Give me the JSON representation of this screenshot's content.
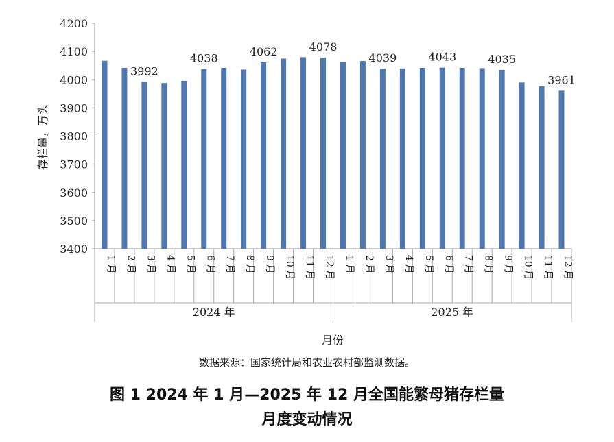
{
  "chart_data": {
    "type": "bar",
    "ylabel": "存栏量，万头",
    "xlabel": "月份",
    "ylim": [
      3400,
      4200
    ],
    "yticks": [
      "3400",
      "3500",
      "3600",
      "3700",
      "3800",
      "3900",
      "4000",
      "4100",
      "4200"
    ],
    "groups": [
      {
        "label": "2024 年",
        "categories": [
          "1 月",
          "2 月",
          "3 月",
          "4 月",
          "5 月",
          "6 月",
          "7 月",
          "8 月",
          "9 月",
          "10 月",
          "11 月",
          "12 月"
        ]
      },
      {
        "label": "2025 年",
        "categories": [
          "1 月",
          "2 月",
          "3 月",
          "4 月",
          "5 月",
          "6 月",
          "7 月",
          "8 月",
          "9 月",
          "10 月",
          "11 月",
          "12 月"
        ]
      }
    ],
    "series": [
      {
        "values": [
          4067,
          4042,
          3992,
          3988,
          3996,
          4038,
          4042,
          4036,
          4062,
          4075,
          4080,
          4078,
          4062,
          4066,
          4039,
          4040,
          4042,
          4043,
          4042,
          4041,
          4035,
          3990,
          3977,
          3961
        ]
      }
    ],
    "data_labels": [
      {
        "index": 2,
        "text": "3992"
      },
      {
        "index": 5,
        "text": "4038"
      },
      {
        "index": 8,
        "text": "4062"
      },
      {
        "index": 11,
        "text": "4078"
      },
      {
        "index": 14,
        "text": "4039"
      },
      {
        "index": 17,
        "text": "4043"
      },
      {
        "index": 20,
        "text": "4035"
      },
      {
        "index": 23,
        "text": "3961"
      }
    ],
    "bar_color": "#4f78b0",
    "grid": false
  },
  "source_note": "数据来源：国家统计局和农业农村部监测数据。",
  "caption": {
    "line1": "图 1 2024 年 1 月—2025 年 12 月全国能繁母猪存栏量",
    "line2": "月度变动情况"
  }
}
